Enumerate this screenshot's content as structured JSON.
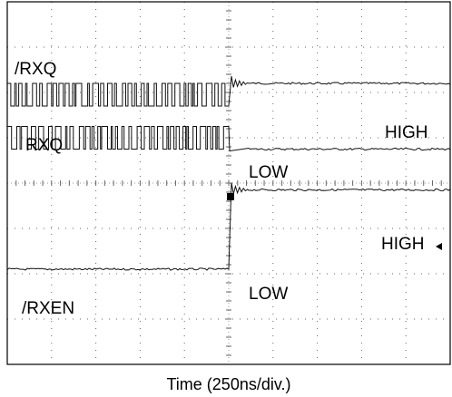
{
  "chart_data": {
    "type": "line",
    "title": "",
    "xlabel": "Time (250ns/div.)",
    "ylabel": "",
    "x_divisions": 10,
    "y_divisions": 8,
    "x_range_div": [
      0,
      10
    ],
    "y_range_div": [
      0,
      8
    ],
    "grid": true,
    "trigger_div": 5,
    "series": [
      {
        "name": "/RXQ",
        "segments": [
          {
            "from_div": 0,
            "to_div": 5,
            "level": "toggling",
            "low_div": 5.7,
            "high_div": 6.2
          },
          {
            "from_div": 5,
            "to_div": 10,
            "level": "HIGH",
            "y_div": 6.2
          }
        ]
      },
      {
        "name": "RXQ",
        "segments": [
          {
            "from_div": 0,
            "to_div": 5,
            "level": "toggling",
            "low_div": 4.75,
            "high_div": 5.25
          },
          {
            "from_div": 5,
            "to_div": 10,
            "level": "LOW",
            "y_div": 4.75
          }
        ]
      },
      {
        "name": "/RXEN",
        "segments": [
          {
            "from_div": 0,
            "to_div": 5,
            "level": "LOW",
            "y_div": 2.1
          },
          {
            "from_div": 5,
            "to_div": 10,
            "level": "HIGH",
            "y_div": 3.85
          }
        ]
      }
    ],
    "annotations": [
      {
        "text": "/RXQ"
      },
      {
        "text": "RXQ"
      },
      {
        "text": "/RXEN"
      },
      {
        "text": "HIGH"
      },
      {
        "text": "LOW"
      },
      {
        "text": "HIGH"
      },
      {
        "text": "LOW"
      }
    ]
  }
}
